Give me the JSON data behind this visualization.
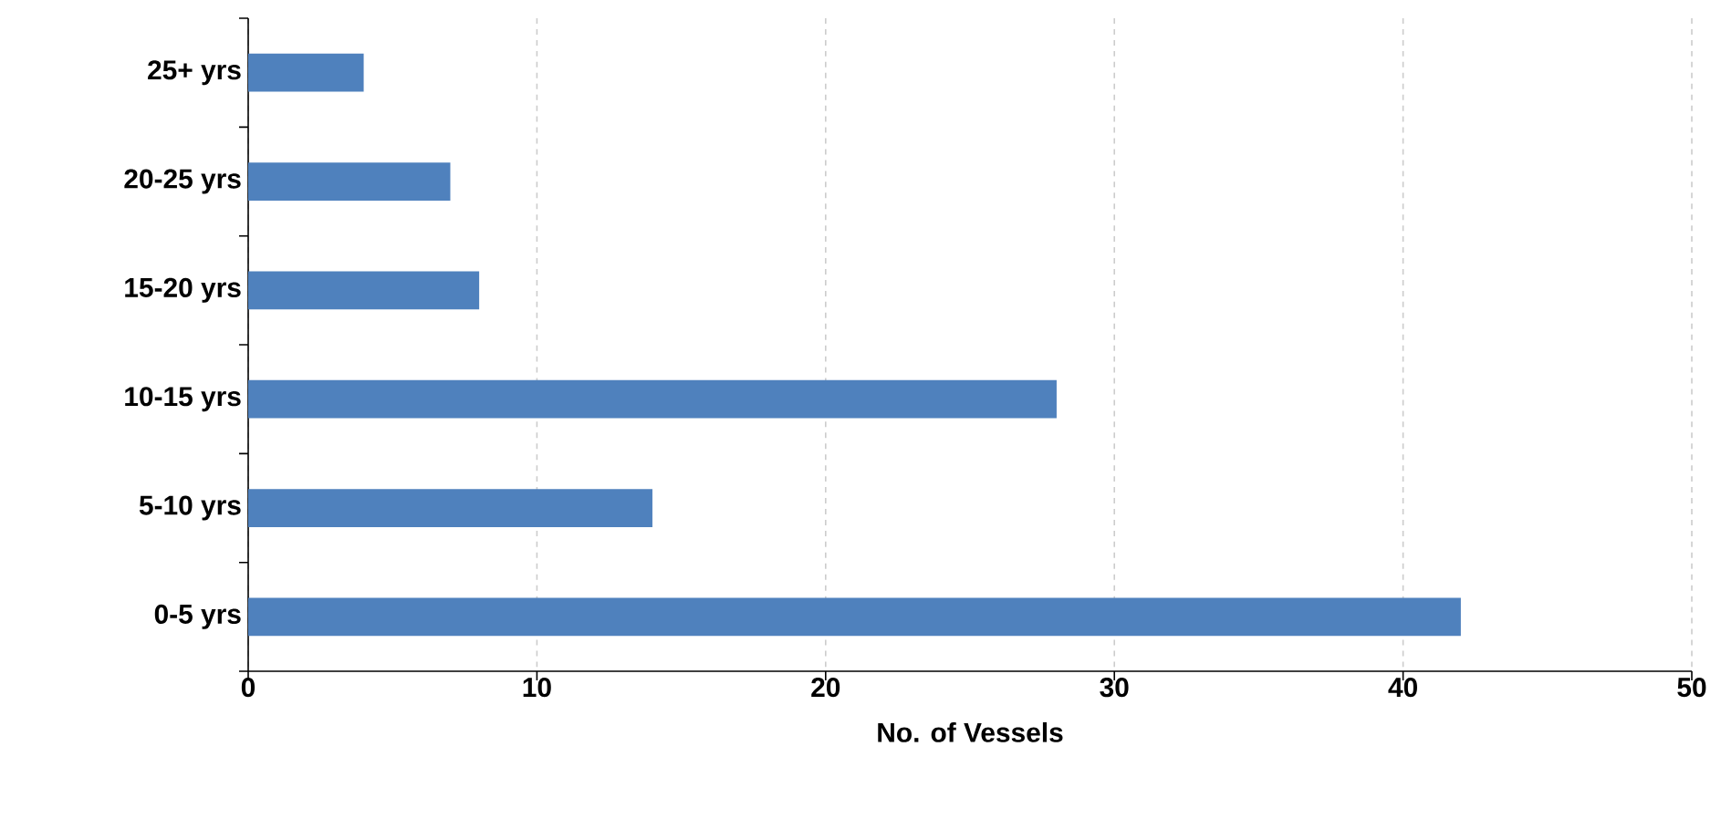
{
  "chart_data": {
    "type": "bar",
    "orientation": "horizontal",
    "xlabel": "No. of Vessels",
    "categories": [
      "25+ yrs",
      "20-25 yrs",
      "15-20 yrs",
      "10-15 yrs",
      "5-10 yrs",
      "0-5 yrs"
    ],
    "values": [
      4,
      7,
      8,
      28,
      14,
      42
    ],
    "color": "#4f81bd",
    "xlim": [
      0,
      50
    ],
    "xticks": [
      0,
      10,
      20,
      30,
      40,
      50
    ],
    "grid": "x"
  }
}
